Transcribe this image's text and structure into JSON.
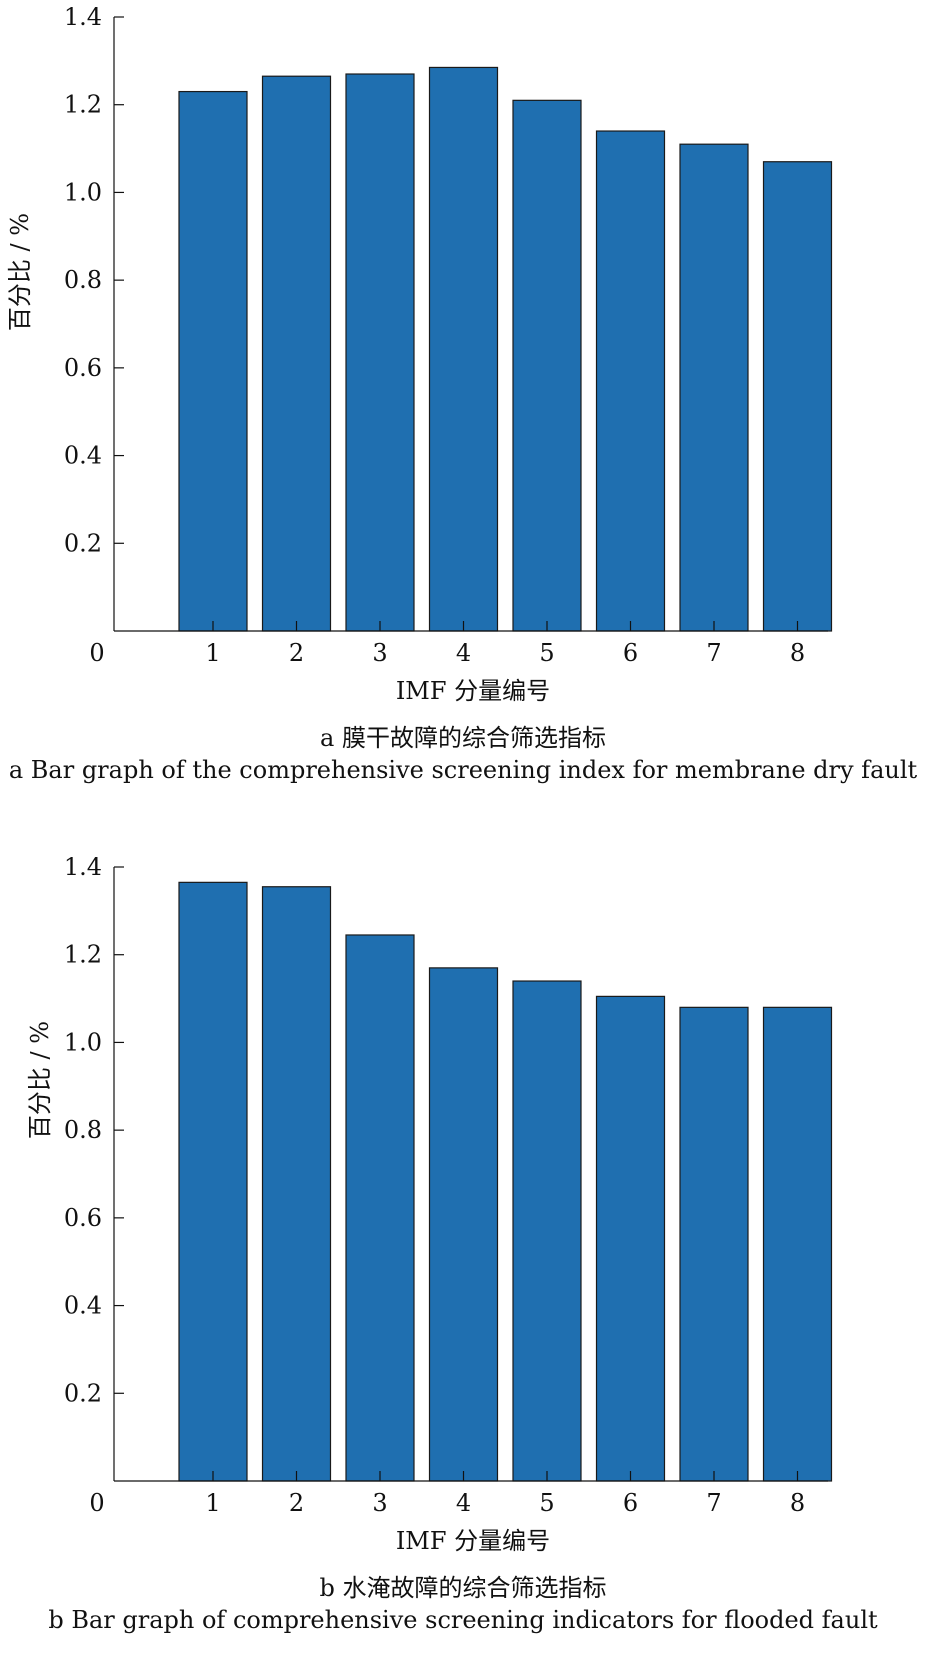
{
  "chart_data": [
    {
      "type": "bar",
      "categories": [
        "1",
        "2",
        "3",
        "4",
        "5",
        "6",
        "7",
        "8"
      ],
      "values": [
        1.23,
        1.265,
        1.27,
        1.285,
        1.21,
        1.14,
        1.11,
        1.07
      ],
      "xlabel": "IMF 分量编号",
      "ylabel": "百分比 / %",
      "ylim": [
        0,
        1.4
      ],
      "yticks": [
        0.2,
        0.4,
        0.6,
        0.8,
        1.0,
        1.2,
        1.4
      ],
      "ytick_labels": [
        "0.2",
        "0.4",
        "0.6",
        "0.8",
        "1.0",
        "1.2",
        "1.4"
      ],
      "zero_label": "0",
      "caption_cn": "a 膜干故障的综合筛选指标",
      "caption_en": "a Bar graph of the comprehensive screening index for membrane dry fault",
      "bar_color": "#1f6fb0",
      "grid": false
    },
    {
      "type": "bar",
      "categories": [
        "1",
        "2",
        "3",
        "4",
        "5",
        "6",
        "7",
        "8"
      ],
      "values": [
        1.365,
        1.355,
        1.245,
        1.17,
        1.14,
        1.105,
        1.08,
        1.08
      ],
      "xlabel": "IMF 分量编号",
      "ylabel": "百分比 / %",
      "ylim": [
        0,
        1.4
      ],
      "yticks": [
        0.2,
        0.4,
        0.6,
        0.8,
        1.0,
        1.2,
        1.4
      ],
      "ytick_labels": [
        "0.2",
        "0.4",
        "0.6",
        "0.8",
        "1.0",
        "1.2",
        "1.4"
      ],
      "zero_label": "0",
      "caption_cn": "b 水淹故障的综合筛选指标",
      "caption_en": "b Bar graph of comprehensive screening indicators for flooded fault",
      "bar_color": "#1f6fb0",
      "grid": false
    }
  ]
}
